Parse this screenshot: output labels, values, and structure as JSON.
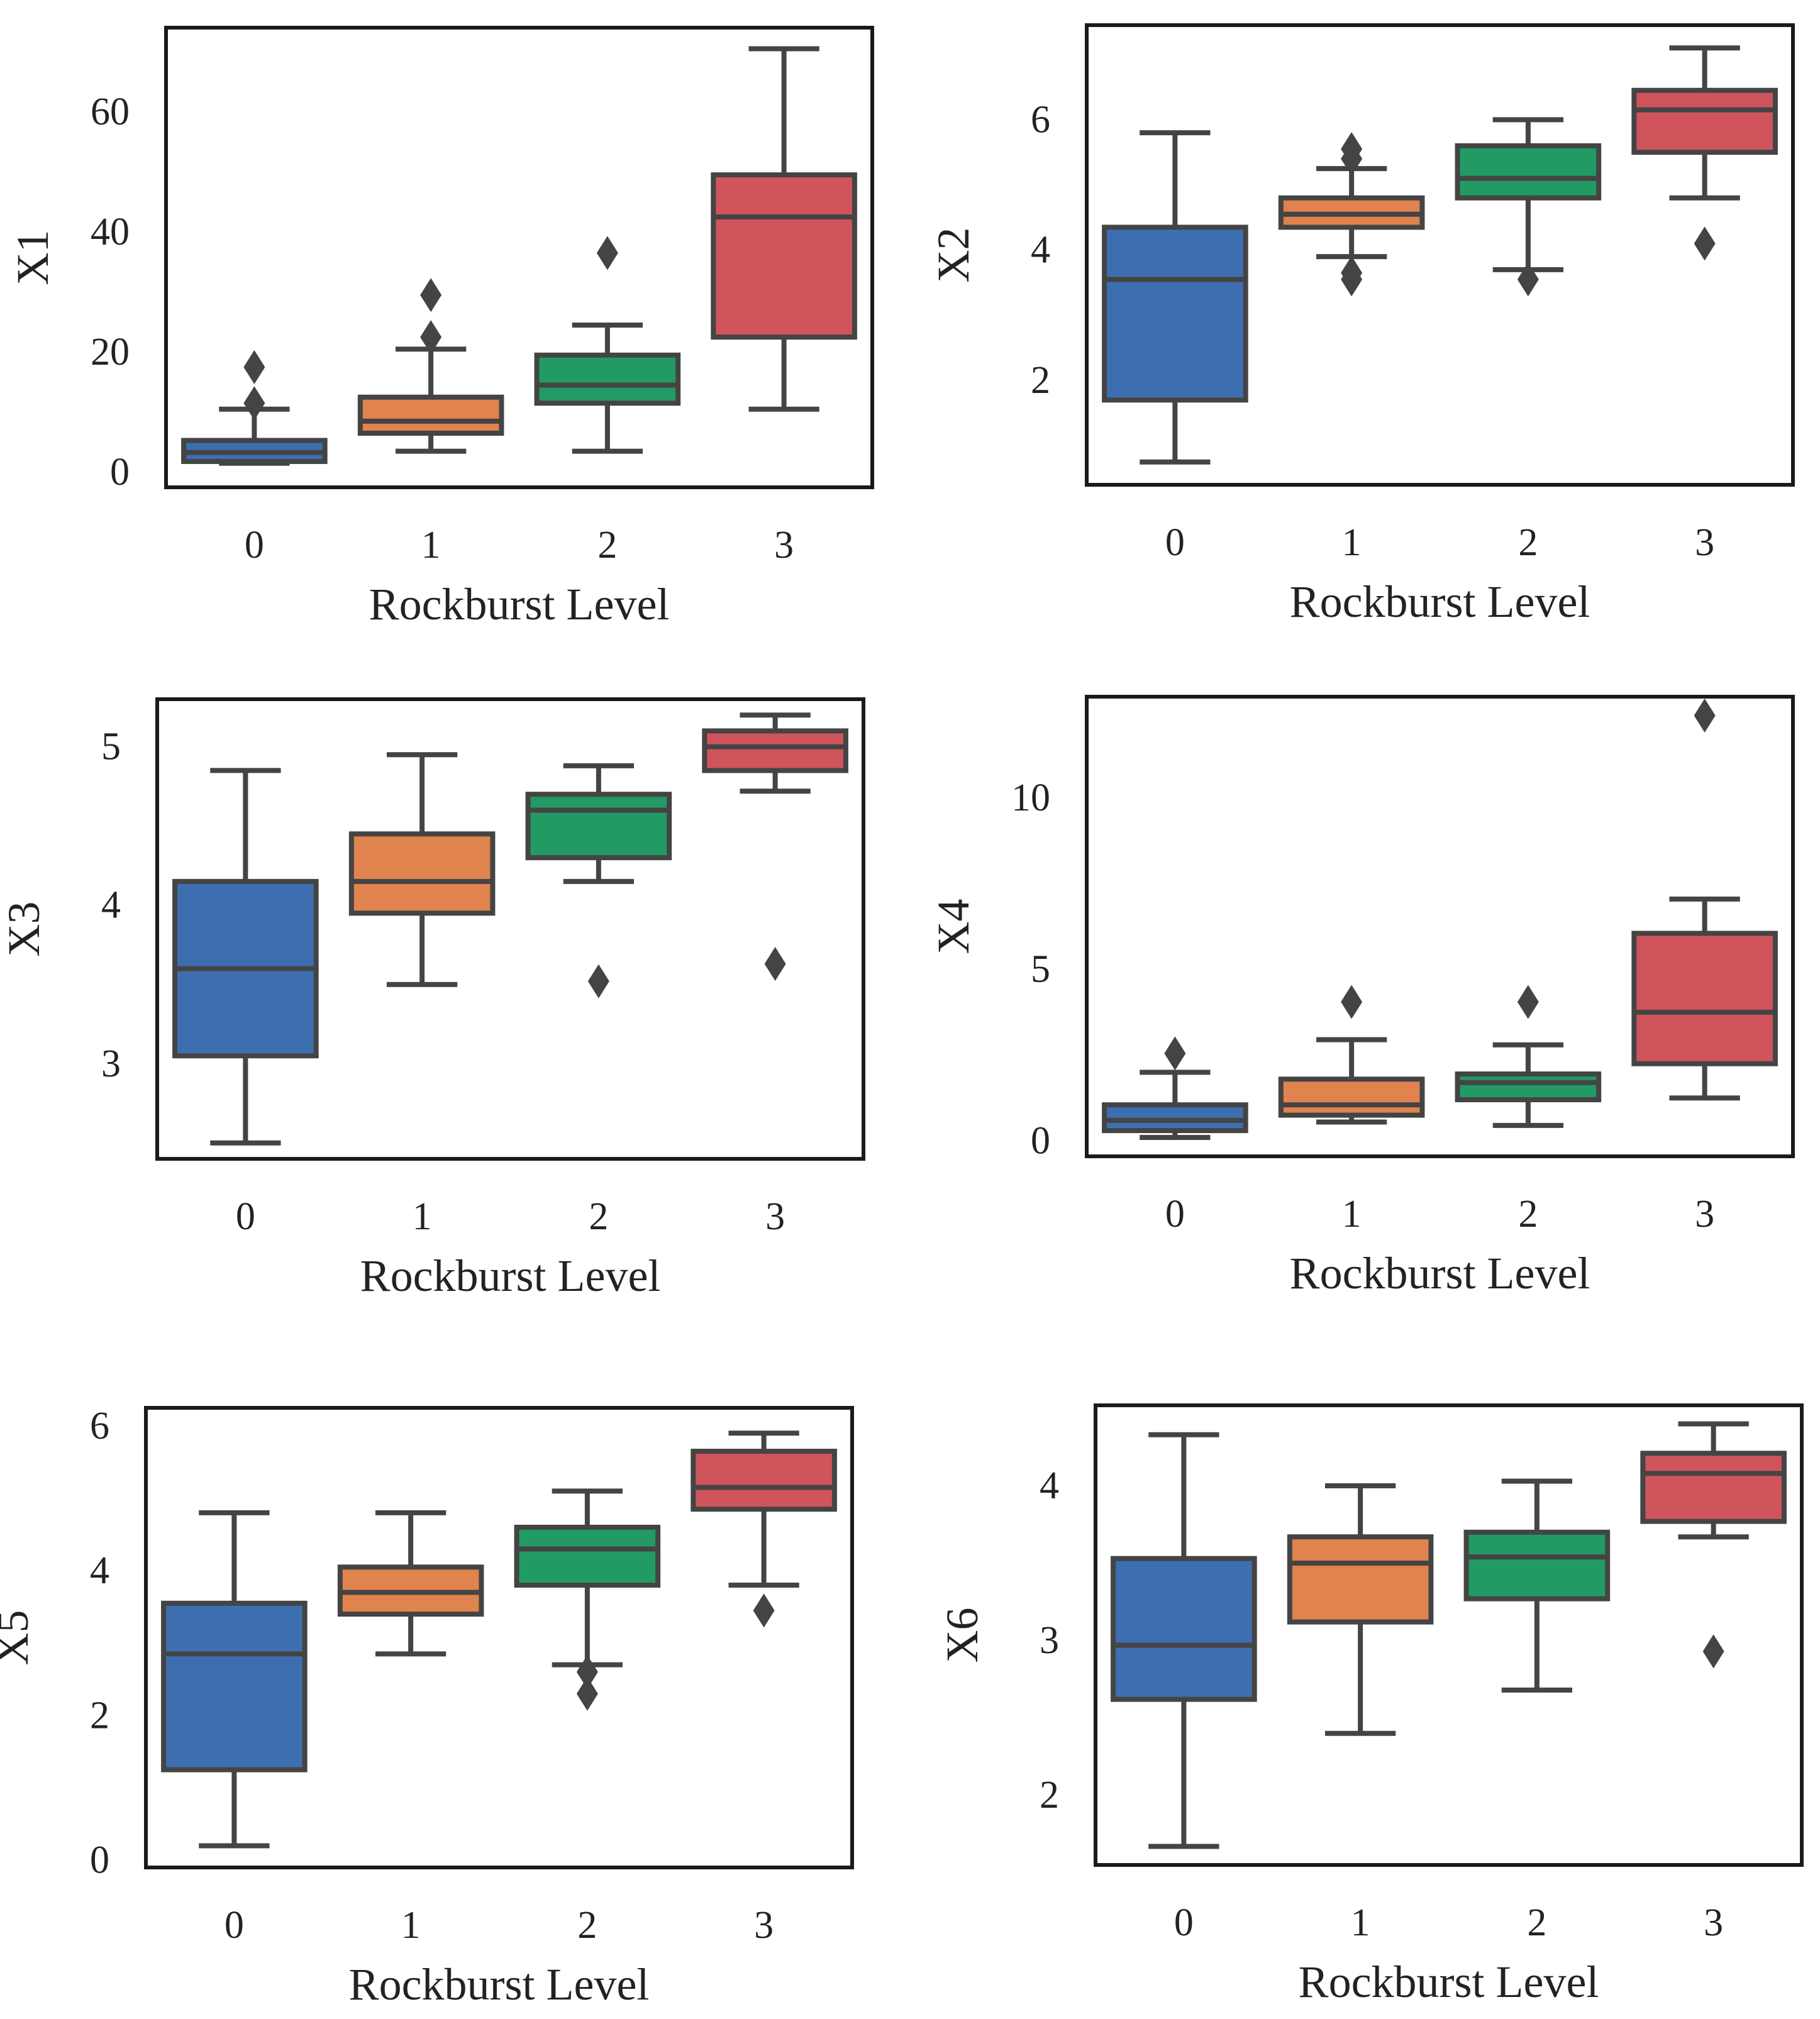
{
  "colors": {
    "level_0": "#3d6fb0",
    "level_1": "#e0834e",
    "level_2": "#229a63",
    "level_3": "#d0545c",
    "outline": "#444444",
    "frame": "#1a1a1a"
  },
  "chart_data": [
    {
      "type": "box",
      "xlabel": "Rockburst Level",
      "ylabel": "X1",
      "categories": [
        "0",
        "1",
        "2",
        "3"
      ],
      "yticks": [
        0,
        20,
        40,
        60
      ],
      "ytick_labels": [
        "0",
        "20",
        "40",
        "60"
      ],
      "ylim": [
        -2.5,
        74
      ],
      "boxes": [
        {
          "category": "0",
          "whisker_low": 1.5,
          "q1": 1.8,
          "median": 3.3,
          "q3": 5.3,
          "whisker_high": 10.5,
          "outliers": [
            11.5,
            17.5
          ]
        },
        {
          "category": "1",
          "whisker_low": 3.5,
          "q1": 6.5,
          "median": 8.5,
          "q3": 12.5,
          "whisker_high": 20.5,
          "outliers": [
            22.5,
            29.5
          ]
        },
        {
          "category": "2",
          "whisker_low": 3.5,
          "q1": 11.5,
          "median": 14.5,
          "q3": 19.5,
          "whisker_high": 24.5,
          "outliers": [
            36.5
          ]
        },
        {
          "category": "3",
          "whisker_low": 10.5,
          "q1": 22.5,
          "median": 42.5,
          "q3": 49.5,
          "whisker_high": 70.5,
          "outliers": []
        }
      ]
    },
    {
      "type": "box",
      "xlabel": "Rockburst Level",
      "ylabel": "X2",
      "categories": [
        "0",
        "1",
        "2",
        "3"
      ],
      "yticks": [
        2,
        4,
        6
      ],
      "ytick_labels": [
        "2",
        "4",
        "6"
      ],
      "ylim": [
        0.4,
        7.45
      ],
      "boxes": [
        {
          "category": "0",
          "whisker_low": 0.75,
          "q1": 1.7,
          "median": 3.55,
          "q3": 4.35,
          "whisker_high": 5.8,
          "outliers": []
        },
        {
          "category": "1",
          "whisker_low": 3.9,
          "q1": 4.35,
          "median": 4.55,
          "q3": 4.8,
          "whisker_high": 5.25,
          "outliers": [
            3.55,
            3.65,
            5.4,
            5.55
          ]
        },
        {
          "category": "2",
          "whisker_low": 3.7,
          "q1": 4.8,
          "median": 5.1,
          "q3": 5.6,
          "whisker_high": 6.0,
          "outliers": [
            3.55
          ]
        },
        {
          "category": "3",
          "whisker_low": 4.8,
          "q1": 5.5,
          "median": 6.15,
          "q3": 6.45,
          "whisker_high": 7.1,
          "outliers": [
            4.1
          ]
        }
      ]
    },
    {
      "type": "box",
      "xlabel": "Rockburst Level",
      "ylabel": "X3",
      "categories": [
        "0",
        "1",
        "2",
        "3"
      ],
      "yticks": [
        3,
        4,
        5
      ],
      "ytick_labels": [
        "3",
        "4",
        "5"
      ],
      "ylim": [
        2.4,
        5.3
      ],
      "boxes": [
        {
          "category": "0",
          "whisker_low": 2.5,
          "q1": 3.05,
          "median": 3.6,
          "q3": 4.15,
          "whisker_high": 4.85,
          "outliers": []
        },
        {
          "category": "1",
          "whisker_low": 3.5,
          "q1": 3.95,
          "median": 4.15,
          "q3": 4.45,
          "whisker_high": 4.95,
          "outliers": []
        },
        {
          "category": "2",
          "whisker_low": 4.15,
          "q1": 4.3,
          "median": 4.6,
          "q3": 4.7,
          "whisker_high": 4.88,
          "outliers": [
            3.52
          ]
        },
        {
          "category": "3",
          "whisker_low": 4.72,
          "q1": 4.85,
          "median": 5.0,
          "q3": 5.1,
          "whisker_high": 5.2,
          "outliers": [
            3.63
          ]
        }
      ]
    },
    {
      "type": "box",
      "xlabel": "Rockburst Level",
      "ylabel": "X4",
      "categories": [
        "0",
        "1",
        "2",
        "3"
      ],
      "yticks": [
        0,
        5,
        10
      ],
      "ytick_labels": [
        "0",
        "5",
        "10"
      ],
      "ylim": [
        -0.45,
        12.95
      ],
      "boxes": [
        {
          "category": "0",
          "whisker_low": 0.1,
          "q1": 0.3,
          "median": 0.6,
          "q3": 1.05,
          "whisker_high": 2.0,
          "outliers": [
            2.55
          ]
        },
        {
          "category": "1",
          "whisker_low": 0.55,
          "q1": 0.75,
          "median": 1.05,
          "q3": 1.8,
          "whisker_high": 2.95,
          "outliers": [
            4.05
          ]
        },
        {
          "category": "2",
          "whisker_low": 0.45,
          "q1": 1.2,
          "median": 1.7,
          "q3": 1.95,
          "whisker_high": 2.8,
          "outliers": [
            4.05
          ]
        },
        {
          "category": "3",
          "whisker_low": 1.25,
          "q1": 2.25,
          "median": 3.75,
          "q3": 6.05,
          "whisker_high": 7.05,
          "outliers": [
            12.4
          ]
        }
      ]
    },
    {
      "type": "box",
      "xlabel": "Rockburst Level",
      "ylabel": "X5",
      "categories": [
        "0",
        "1",
        "2",
        "3"
      ],
      "yticks": [
        0,
        2,
        4,
        6
      ],
      "ytick_labels": [
        "0",
        "2",
        "4",
        "6"
      ],
      "ylim": [
        -0.1,
        6.25
      ],
      "boxes": [
        {
          "category": "0",
          "whisker_low": 0.2,
          "q1": 1.25,
          "median": 2.85,
          "q3": 3.55,
          "whisker_high": 4.8,
          "outliers": []
        },
        {
          "category": "1",
          "whisker_low": 2.85,
          "q1": 3.4,
          "median": 3.7,
          "q3": 4.05,
          "whisker_high": 4.8,
          "outliers": []
        },
        {
          "category": "2",
          "whisker_low": 2.7,
          "q1": 3.8,
          "median": 4.3,
          "q3": 4.6,
          "whisker_high": 5.1,
          "outliers": [
            2.3,
            2.6
          ]
        },
        {
          "category": "3",
          "whisker_low": 3.8,
          "q1": 4.85,
          "median": 5.15,
          "q3": 5.65,
          "whisker_high": 5.9,
          "outliers": [
            3.45
          ]
        }
      ]
    },
    {
      "type": "box",
      "xlabel": "Rockburst Level",
      "ylabel": "X6",
      "categories": [
        "0",
        "1",
        "2",
        "3"
      ],
      "yticks": [
        2,
        3,
        4
      ],
      "ytick_labels": [
        "2",
        "3",
        "4"
      ],
      "ylim": [
        1.55,
        4.52
      ],
      "boxes": [
        {
          "category": "0",
          "whisker_low": 1.67,
          "q1": 2.62,
          "median": 2.97,
          "q3": 3.53,
          "whisker_high": 4.33,
          "outliers": []
        },
        {
          "category": "1",
          "whisker_low": 2.4,
          "q1": 3.12,
          "median": 3.5,
          "q3": 3.67,
          "whisker_high": 4.0,
          "outliers": []
        },
        {
          "category": "2",
          "whisker_low": 2.68,
          "q1": 3.27,
          "median": 3.54,
          "q3": 3.7,
          "whisker_high": 4.03,
          "outliers": []
        },
        {
          "category": "3",
          "whisker_low": 3.67,
          "q1": 3.77,
          "median": 4.08,
          "q3": 4.21,
          "whisker_high": 4.4,
          "outliers": [
            2.93
          ]
        }
      ]
    }
  ]
}
